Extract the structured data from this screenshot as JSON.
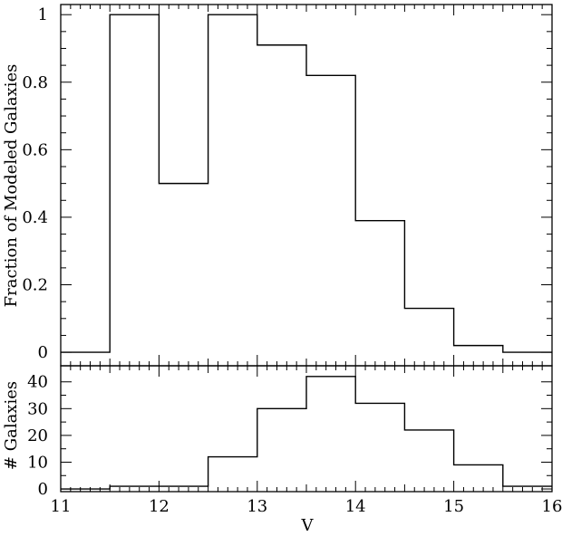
{
  "chart_data": [
    {
      "type": "step",
      "panel": "top",
      "ylabel": "Fraction of Modeled Galaxies",
      "xlim": [
        11,
        16
      ],
      "ylim": [
        -0.04,
        1.03
      ],
      "yticks": [
        0,
        0.2,
        0.4,
        0.6,
        0.8,
        1
      ],
      "ytick_labels": [
        "0",
        "0.2",
        "0.4",
        "0.6",
        "0.8",
        "1"
      ],
      "bin_edges": [
        11,
        11.5,
        12,
        12.5,
        13,
        13.5,
        14,
        14.5,
        15,
        15.5,
        16
      ],
      "values": [
        0,
        1,
        0.5,
        1,
        0.91,
        0.82,
        0.39,
        0.13,
        0.02,
        0.0
      ]
    },
    {
      "type": "step",
      "panel": "bottom",
      "xlabel": "V",
      "ylabel": "# Galaxies",
      "xlim": [
        11,
        16
      ],
      "ylim": [
        -1,
        46
      ],
      "yticks": [
        0,
        10,
        20,
        30,
        40
      ],
      "ytick_labels": [
        "0",
        "10",
        "20",
        "30",
        "40"
      ],
      "xticks": [
        11,
        12,
        13,
        14,
        15,
        16
      ],
      "xtick_labels": [
        "11",
        "12",
        "13",
        "14",
        "15",
        "16"
      ],
      "bin_edges": [
        11,
        11.5,
        12,
        12.5,
        13,
        13.5,
        14,
        14.5,
        15,
        15.5,
        16
      ],
      "values": [
        0,
        1,
        1,
        12,
        30,
        42,
        32,
        22,
        9,
        1
      ]
    }
  ]
}
